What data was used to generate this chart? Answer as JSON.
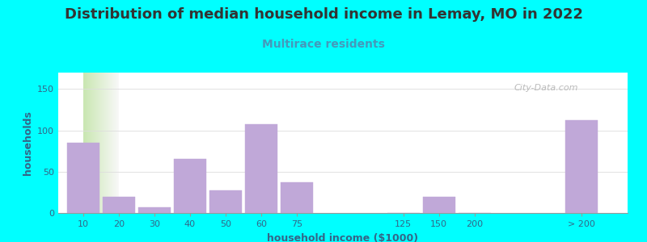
{
  "title": "Distribution of median household income in Lemay, MO in 2022",
  "subtitle": "Multirace residents",
  "xlabel": "household income ($1000)",
  "ylabel": "households",
  "background_color": "#00ffff",
  "plot_bg_gradient_left": "#c8e6b0",
  "plot_bg_gradient_right": "#f8f8f8",
  "bar_color": "#c0a8d8",
  "bar_edge_color": "#c0a8d8",
  "categories": [
    "10",
    "20",
    "30",
    "40",
    "50",
    "60",
    "75",
    "125",
    "150",
    "200",
    "> 200"
  ],
  "values": [
    85,
    20,
    7,
    65,
    27,
    107,
    37,
    0,
    20,
    0,
    112
  ],
  "ylim": [
    0,
    170
  ],
  "yticks": [
    0,
    50,
    100,
    150
  ],
  "title_fontsize": 13,
  "subtitle_fontsize": 10,
  "axis_label_fontsize": 9,
  "tick_fontsize": 8,
  "title_color": "#333333",
  "subtitle_color": "#4499bb",
  "axis_label_color": "#336688",
  "tick_color": "#336688",
  "watermark_text": "City-Data.com",
  "watermark_color": "#aaaaaa",
  "grid_color": "#dddddd",
  "x_positions": [
    0,
    1,
    2,
    3,
    4,
    5,
    6,
    9,
    10,
    11,
    14
  ],
  "bar_width": 0.9
}
